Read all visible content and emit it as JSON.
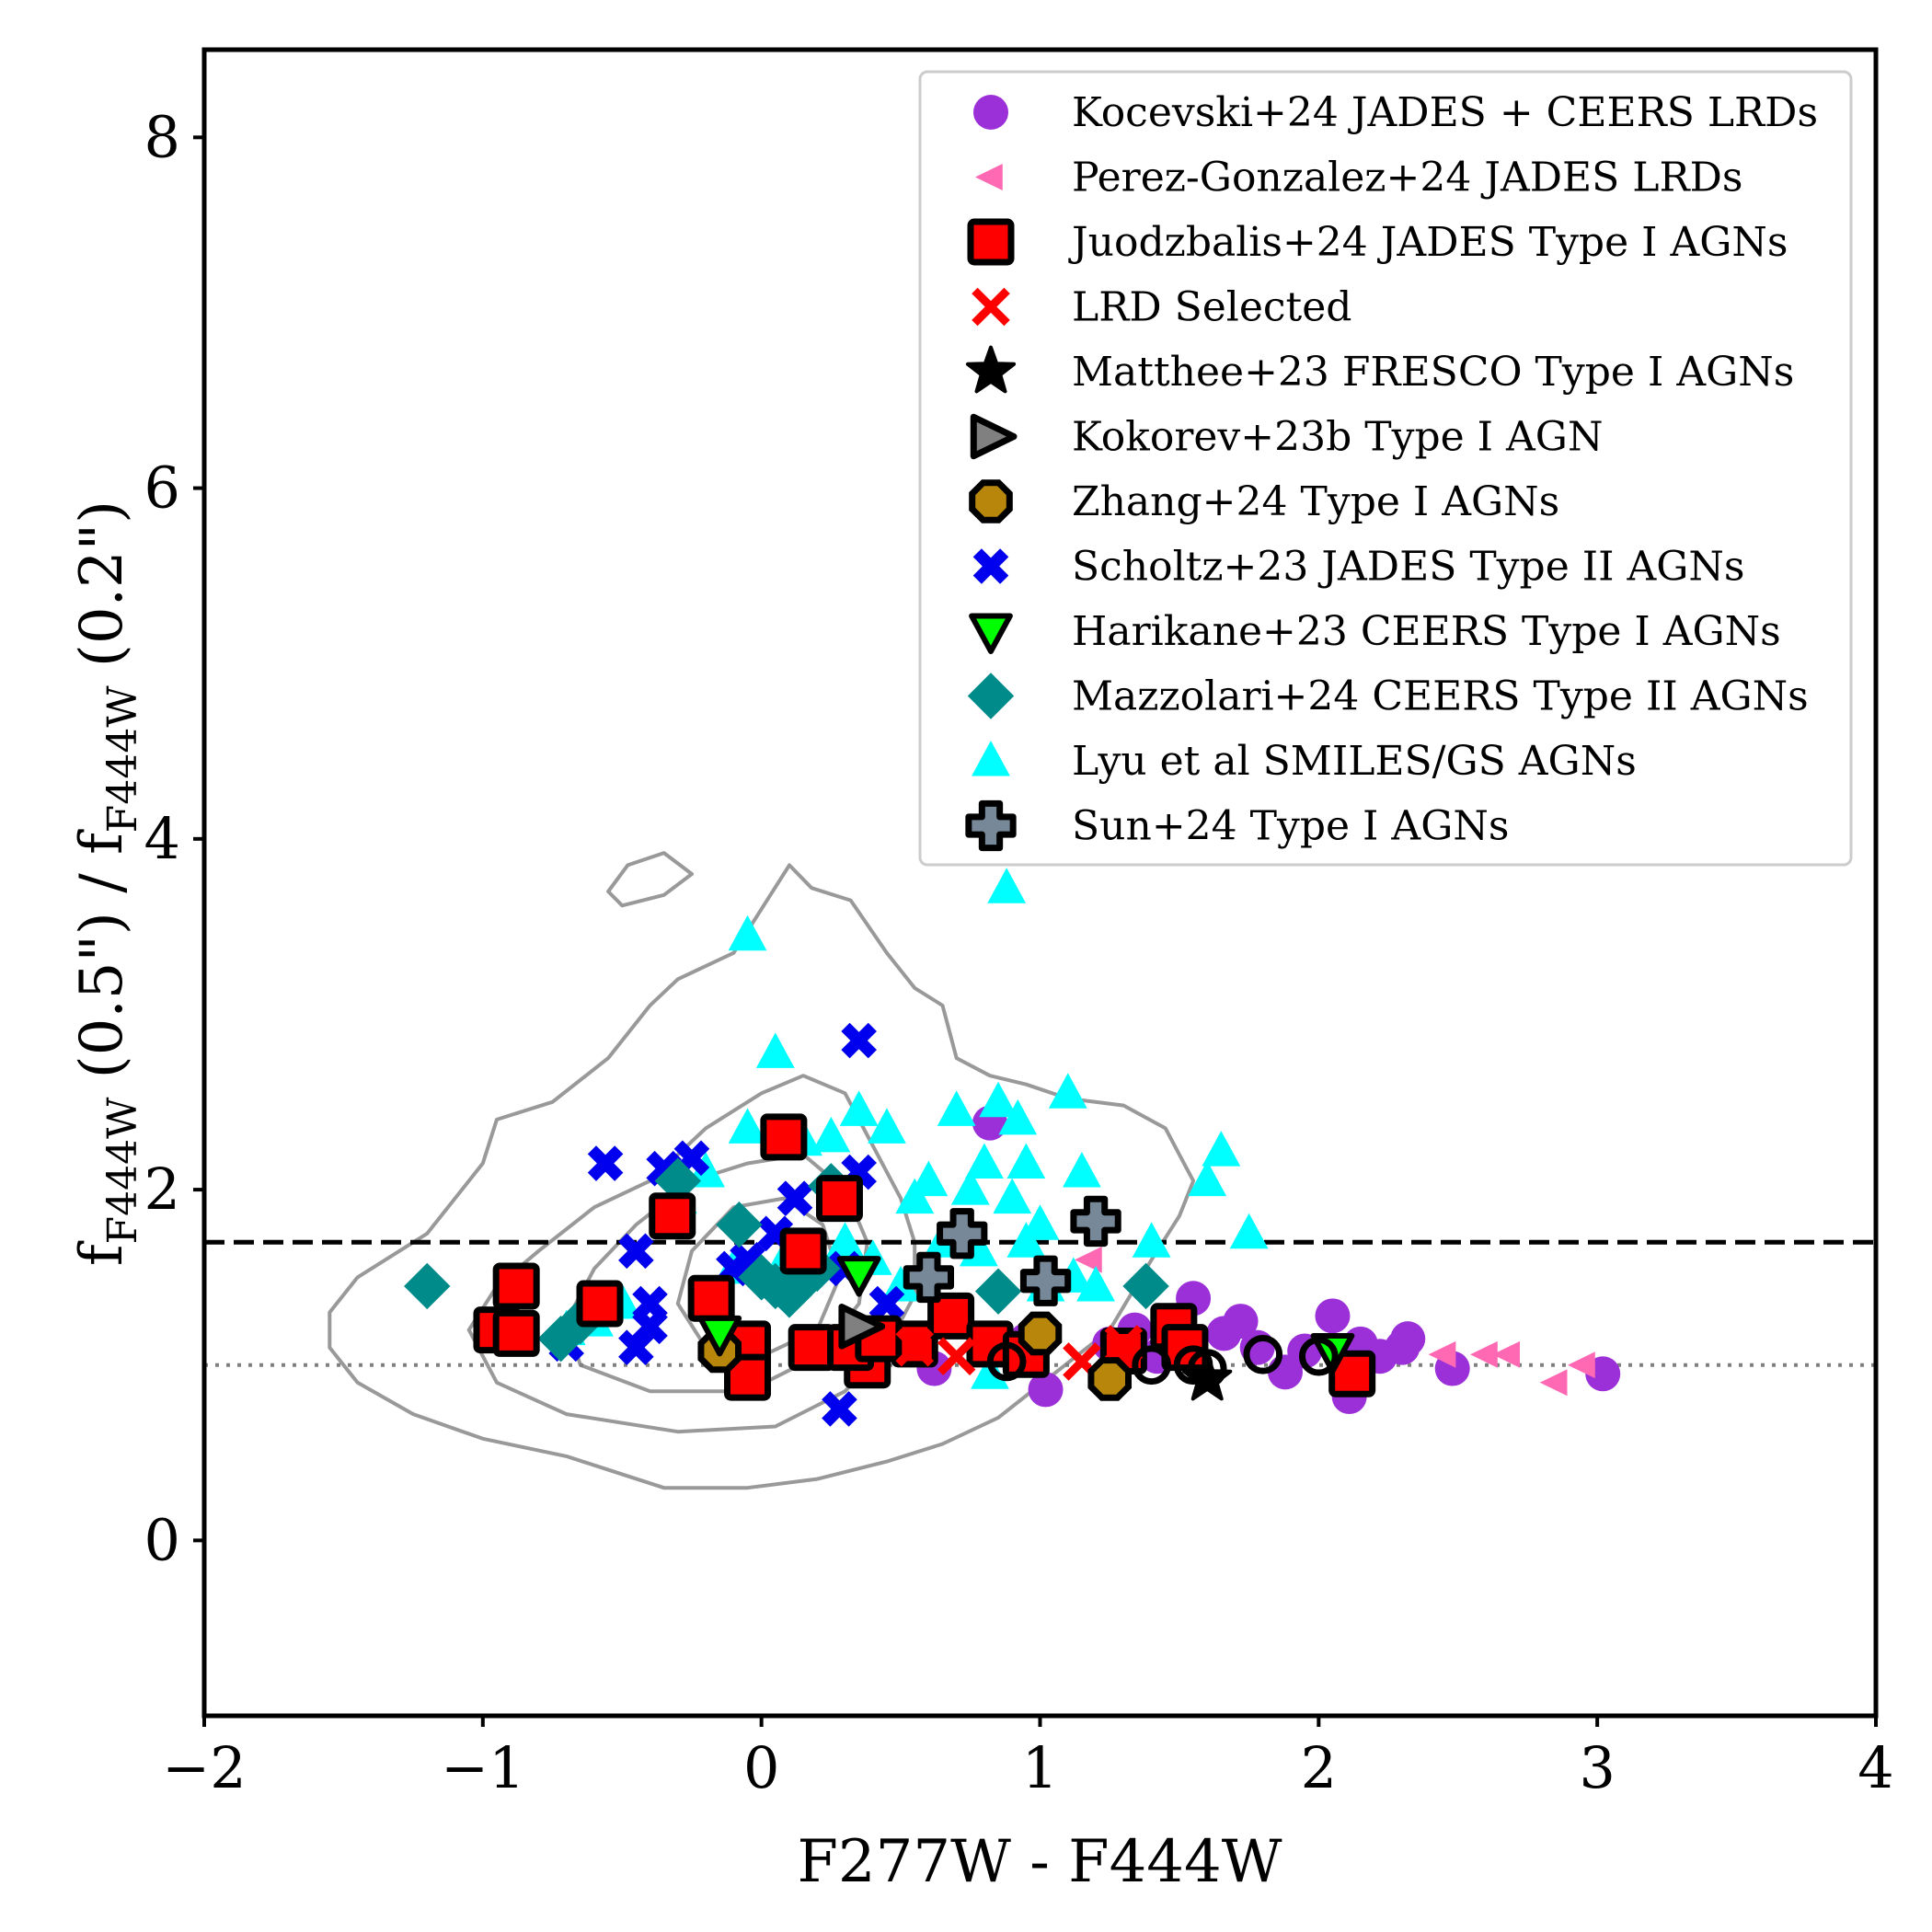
{
  "chart_data": {
    "type": "scatter",
    "xlabel": "F277W - F444W",
    "ylabel_main": "f",
    "ylabel_sub_num": "F444W",
    "ylabel_mid": " (0.5\") / f",
    "ylabel_sub_den": "F444W",
    "ylabel_end": " (0.2\")",
    "xlim": [
      -2,
      4
    ],
    "ylim": [
      -1,
      8.5
    ],
    "xticks": [
      -2,
      -1,
      0,
      1,
      2,
      3,
      4
    ],
    "xtick_labels": [
      "−2",
      "−1",
      "0",
      "1",
      "2",
      "3",
      "4"
    ],
    "yticks": [
      0,
      2,
      4,
      6,
      8
    ],
    "ytick_labels": [
      "0",
      "2",
      "4",
      "6",
      "8"
    ],
    "reference_lines": [
      {
        "name": "dashed-threshold",
        "y": 1.7,
        "style": "dashed",
        "color": "#000000"
      },
      {
        "name": "dotted-unity",
        "y": 1.0,
        "style": "dotted",
        "color": "#808080"
      }
    ],
    "contours": [
      {
        "level": "outer",
        "color": "#999999",
        "points": [
          [
            -1.55,
            1.3
          ],
          [
            -1.45,
            1.5
          ],
          [
            -1.2,
            1.75
          ],
          [
            -1.0,
            2.15
          ],
          [
            -0.95,
            2.4
          ],
          [
            -0.75,
            2.5
          ],
          [
            -0.55,
            2.75
          ],
          [
            -0.4,
            3.05
          ],
          [
            -0.3,
            3.2
          ],
          [
            -0.1,
            3.35
          ],
          [
            0.0,
            3.6
          ],
          [
            0.1,
            3.85
          ],
          [
            0.18,
            3.72
          ],
          [
            0.32,
            3.65
          ],
          [
            0.45,
            3.35
          ],
          [
            0.55,
            3.15
          ],
          [
            0.65,
            3.05
          ],
          [
            0.7,
            2.75
          ],
          [
            0.82,
            2.65
          ],
          [
            0.95,
            2.6
          ],
          [
            1.1,
            2.52
          ],
          [
            1.3,
            2.48
          ],
          [
            1.45,
            2.35
          ],
          [
            1.5,
            2.2
          ],
          [
            1.55,
            2.05
          ],
          [
            1.5,
            1.85
          ],
          [
            1.4,
            1.6
          ],
          [
            1.25,
            1.2
          ],
          [
            1.05,
            0.95
          ],
          [
            0.85,
            0.7
          ],
          [
            0.65,
            0.55
          ],
          [
            0.45,
            0.45
          ],
          [
            0.2,
            0.35
          ],
          [
            -0.05,
            0.3
          ],
          [
            -0.35,
            0.3
          ],
          [
            -0.7,
            0.48
          ],
          [
            -1.0,
            0.58
          ],
          [
            -1.25,
            0.72
          ],
          [
            -1.45,
            0.9
          ],
          [
            -1.55,
            1.1
          ],
          [
            -1.55,
            1.3
          ]
        ]
      },
      {
        "level": "island",
        "color": "#999999",
        "points": [
          [
            -0.55,
            3.7
          ],
          [
            -0.48,
            3.85
          ],
          [
            -0.35,
            3.92
          ],
          [
            -0.25,
            3.8
          ],
          [
            -0.35,
            3.68
          ],
          [
            -0.5,
            3.62
          ],
          [
            -0.55,
            3.7
          ]
        ]
      },
      {
        "level": "middle",
        "color": "#999999",
        "points": [
          [
            -1.05,
            1.2
          ],
          [
            -0.95,
            1.45
          ],
          [
            -0.8,
            1.65
          ],
          [
            -0.6,
            1.9
          ],
          [
            -0.4,
            2.05
          ],
          [
            -0.2,
            2.35
          ],
          [
            0.0,
            2.55
          ],
          [
            0.15,
            2.65
          ],
          [
            0.3,
            2.55
          ],
          [
            0.4,
            2.25
          ],
          [
            0.5,
            1.95
          ],
          [
            0.55,
            1.7
          ],
          [
            0.55,
            1.4
          ],
          [
            0.45,
            1.1
          ],
          [
            0.3,
            0.85
          ],
          [
            0.05,
            0.65
          ],
          [
            -0.3,
            0.62
          ],
          [
            -0.7,
            0.72
          ],
          [
            -0.95,
            0.9
          ],
          [
            -1.05,
            1.2
          ]
        ]
      },
      {
        "level": "inner1",
        "color": "#999999",
        "points": [
          [
            -0.7,
            1.25
          ],
          [
            -0.6,
            1.55
          ],
          [
            -0.45,
            1.8
          ],
          [
            -0.25,
            2.05
          ],
          [
            -0.05,
            2.15
          ],
          [
            0.15,
            2.2
          ],
          [
            0.3,
            2.0
          ],
          [
            0.38,
            1.7
          ],
          [
            0.35,
            1.35
          ],
          [
            0.2,
            1.05
          ],
          [
            -0.05,
            0.85
          ],
          [
            -0.4,
            0.85
          ],
          [
            -0.65,
            1.0
          ],
          [
            -0.7,
            1.25
          ]
        ]
      },
      {
        "level": "inner2",
        "color": "#999999",
        "points": [
          [
            -0.3,
            1.35
          ],
          [
            -0.25,
            1.65
          ],
          [
            -0.1,
            1.9
          ],
          [
            0.08,
            1.95
          ],
          [
            0.22,
            1.8
          ],
          [
            0.28,
            1.5
          ],
          [
            0.2,
            1.2
          ],
          [
            0.0,
            1.05
          ],
          [
            -0.2,
            1.1
          ],
          [
            -0.3,
            1.35
          ]
        ]
      }
    ],
    "series": [
      {
        "name": "Kocevski+24 JADES + CEERS LRDs",
        "marker": "circle",
        "color": "#9b30d9",
        "points": [
          [
            0.82,
            2.38
          ],
          [
            1.02,
            0.86
          ],
          [
            1.55,
            1.38
          ],
          [
            1.72,
            1.25
          ],
          [
            1.78,
            1.1
          ],
          [
            1.88,
            0.96
          ],
          [
            2.05,
            1.28
          ],
          [
            2.22,
            1.05
          ],
          [
            2.3,
            1.1
          ],
          [
            2.32,
            1.15
          ],
          [
            2.48,
            0.98
          ],
          [
            3.02,
            0.95
          ],
          [
            2.11,
            0.82
          ],
          [
            1.66,
            1.18
          ],
          [
            1.42,
            1.05
          ],
          [
            0.62,
            0.98
          ],
          [
            1.25,
            1.12
          ],
          [
            1.95,
            1.08
          ],
          [
            2.15,
            1.12
          ],
          [
            1.34,
            1.2
          ],
          [
            0.95,
            1.14
          ]
        ]
      },
      {
        "name": "Perez-Gonzalez+24 JADES LRDs",
        "marker": "tri-left",
        "color": "#ff69b4",
        "points": [
          [
            2.6,
            1.06
          ],
          [
            2.68,
            1.06
          ],
          [
            2.95,
            1.0
          ],
          [
            2.85,
            0.9
          ],
          [
            1.18,
            1.6
          ],
          [
            2.45,
            1.06
          ]
        ]
      },
      {
        "name": "Lyu et al SMILES/GS AGNs",
        "marker": "tri-up",
        "color": "#00ffff",
        "points": [
          [
            -0.05,
            3.45
          ],
          [
            0.05,
            2.78
          ],
          [
            -0.05,
            2.35
          ],
          [
            0.15,
            2.28
          ],
          [
            0.25,
            2.3
          ],
          [
            0.35,
            2.45
          ],
          [
            0.45,
            2.35
          ],
          [
            0.55,
            1.95
          ],
          [
            0.6,
            2.05
          ],
          [
            0.7,
            2.45
          ],
          [
            0.75,
            2.0
          ],
          [
            0.8,
            2.15
          ],
          [
            0.85,
            2.5
          ],
          [
            0.9,
            1.95
          ],
          [
            0.92,
            2.4
          ],
          [
            0.95,
            2.15
          ],
          [
            1.0,
            1.8
          ],
          [
            1.1,
            2.55
          ],
          [
            1.15,
            2.1
          ],
          [
            1.2,
            1.45
          ],
          [
            1.4,
            1.7
          ],
          [
            1.6,
            2.05
          ],
          [
            1.65,
            2.22
          ],
          [
            1.75,
            1.75
          ],
          [
            0.88,
            3.72
          ],
          [
            -0.3,
            1.95
          ],
          [
            -0.2,
            2.1
          ],
          [
            -0.5,
            1.35
          ],
          [
            -0.6,
            1.25
          ],
          [
            -0.7,
            1.2
          ],
          [
            0.5,
            1.45
          ],
          [
            0.65,
            1.7
          ],
          [
            0.78,
            1.65
          ],
          [
            0.95,
            1.7
          ],
          [
            1.02,
            1.45
          ],
          [
            1.12,
            1.5
          ],
          [
            0.3,
            1.7
          ],
          [
            0.4,
            1.6
          ],
          [
            0.1,
            1.65
          ],
          [
            -0.1,
            1.55
          ],
          [
            0.82,
            0.95
          ]
        ]
      },
      {
        "name": "Scholtz+23 JADES Type II AGNs",
        "marker": "x-thick",
        "color": "#0000ee",
        "points": [
          [
            0.35,
            2.85
          ],
          [
            -0.56,
            2.15
          ],
          [
            -0.25,
            2.18
          ],
          [
            -0.35,
            2.12
          ],
          [
            0.35,
            2.1
          ],
          [
            0.12,
            1.95
          ],
          [
            -0.45,
            1.65
          ],
          [
            -0.1,
            1.55
          ],
          [
            0.3,
            1.55
          ],
          [
            -0.4,
            1.35
          ],
          [
            -0.4,
            1.22
          ],
          [
            -0.45,
            1.1
          ],
          [
            -0.7,
            1.12
          ],
          [
            0.28,
            0.75
          ],
          [
            0.45,
            1.35
          ],
          [
            -0.05,
            1.6
          ],
          [
            0.05,
            1.75
          ]
        ]
      },
      {
        "name": "Mazzolari+24 CEERS Type II AGNs",
        "marker": "diamond",
        "color": "#008b8b",
        "points": [
          [
            -1.2,
            1.45
          ],
          [
            -0.72,
            1.15
          ],
          [
            -0.65,
            1.25
          ],
          [
            -0.3,
            2.05
          ],
          [
            -0.08,
            1.8
          ],
          [
            0.05,
            1.45
          ],
          [
            0.1,
            1.4
          ],
          [
            0.15,
            1.48
          ],
          [
            0.2,
            1.55
          ],
          [
            0.25,
            2.02
          ],
          [
            0.85,
            1.42
          ],
          [
            1.38,
            1.45
          ],
          [
            0.0,
            1.5
          ]
        ]
      },
      {
        "name": "Juodzbalis+24 JADES Type I AGNs",
        "marker": "square",
        "color": "#ff0000",
        "edge": "#000000",
        "points": [
          [
            0.08,
            2.3
          ],
          [
            -0.32,
            1.85
          ],
          [
            0.28,
            1.95
          ],
          [
            0.15,
            1.65
          ],
          [
            -0.88,
            1.45
          ],
          [
            -0.58,
            1.35
          ],
          [
            -0.18,
            1.38
          ],
          [
            -0.95,
            1.2
          ],
          [
            -0.88,
            1.18
          ],
          [
            -0.05,
            1.12
          ],
          [
            0.18,
            1.1
          ],
          [
            0.38,
            1.0
          ],
          [
            0.32,
            1.1
          ],
          [
            0.55,
            1.12
          ],
          [
            0.68,
            1.28
          ],
          [
            0.82,
            1.12
          ],
          [
            0.95,
            1.06
          ],
          [
            1.3,
            1.08
          ],
          [
            1.48,
            1.22
          ],
          [
            1.52,
            1.1
          ],
          [
            2.12,
            0.95
          ],
          [
            -0.05,
            0.93
          ],
          [
            0.42,
            1.15
          ]
        ]
      },
      {
        "name": "LRD Selected",
        "marker": "x-thin",
        "color": "#ff0000",
        "points": [
          [
            0.7,
            1.05
          ],
          [
            1.15,
            1.02
          ],
          [
            1.3,
            1.12
          ],
          [
            0.55,
            1.1
          ]
        ]
      },
      {
        "name": "Matthee+23 FRESCO Type I AGNs",
        "marker": "star",
        "color": "#000000",
        "points": [
          [
            1.6,
            0.92
          ]
        ]
      },
      {
        "name": "Kokorev+23b Type I AGN",
        "marker": "tri-right",
        "color": "#808080",
        "edge": "#000000",
        "points": [
          [
            0.35,
            1.22
          ]
        ]
      },
      {
        "name": "Zhang+24 Type I AGNs",
        "marker": "octagon",
        "color": "#b8860b",
        "edge": "#000000",
        "points": [
          [
            1.25,
            0.92
          ],
          [
            1.0,
            1.18
          ],
          [
            -0.15,
            1.08
          ]
        ]
      },
      {
        "name": "Harikane+23 CEERS Type I AGNs",
        "marker": "tri-down",
        "color": "#00ff00",
        "edge": "#000000",
        "points": [
          [
            0.35,
            1.52
          ],
          [
            -0.15,
            1.18
          ],
          [
            2.05,
            1.08
          ]
        ]
      },
      {
        "name": "Sun+24 Type I AGNs",
        "marker": "plus",
        "color": "#778899",
        "edge": "#000000",
        "points": [
          [
            1.2,
            1.82
          ],
          [
            0.72,
            1.75
          ],
          [
            0.6,
            1.5
          ],
          [
            1.02,
            1.48
          ]
        ]
      },
      {
        "name": "Unlabeled open circles",
        "marker": "open-circle",
        "color": "#000000",
        "points": [
          [
            1.6,
            0.98
          ],
          [
            1.8,
            1.06
          ],
          [
            2.0,
            1.05
          ],
          [
            1.4,
            1.0
          ],
          [
            0.88,
            1.02
          ],
          [
            1.55,
            1.0
          ]
        ]
      }
    ],
    "legend": {
      "placement": "upper right",
      "entries": [
        {
          "label": "Kocevski+24 JADES + CEERS LRDs",
          "marker": "circle",
          "color": "#9b30d9"
        },
        {
          "label": "Perez-Gonzalez+24 JADES LRDs",
          "marker": "tri-left",
          "color": "#ff69b4"
        },
        {
          "label": "Juodzbalis+24 JADES Type I AGNs",
          "marker": "square",
          "color": "#ff0000",
          "edge": "#000000"
        },
        {
          "label": "LRD Selected",
          "marker": "x-thin",
          "color": "#ff0000"
        },
        {
          "label": "Matthee+23 FRESCO Type I AGNs",
          "marker": "star",
          "color": "#000000"
        },
        {
          "label": "Kokorev+23b Type I AGN",
          "marker": "tri-right",
          "color": "#808080",
          "edge": "#000000"
        },
        {
          "label": "Zhang+24 Type I AGNs",
          "marker": "octagon",
          "color": "#b8860b",
          "edge": "#000000"
        },
        {
          "label": "Scholtz+23 JADES Type II AGNs",
          "marker": "x-thick",
          "color": "#0000ee"
        },
        {
          "label": "Harikane+23 CEERS Type I AGNs",
          "marker": "tri-down",
          "color": "#00ff00",
          "edge": "#000000"
        },
        {
          "label": "Mazzolari+24 CEERS Type II AGNs",
          "marker": "diamond",
          "color": "#008b8b"
        },
        {
          "label": "Lyu et al SMILES/GS AGNs",
          "marker": "tri-up",
          "color": "#00ffff"
        },
        {
          "label": "Sun+24 Type I AGNs",
          "marker": "plus",
          "color": "#778899",
          "edge": "#000000"
        }
      ]
    }
  }
}
